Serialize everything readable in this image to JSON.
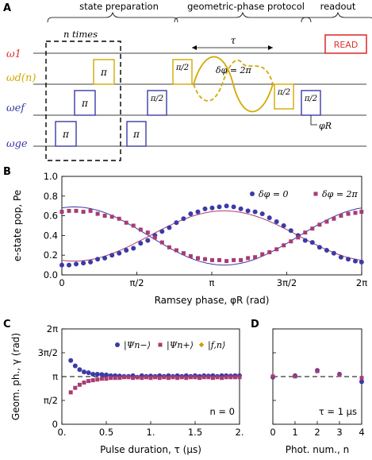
{
  "panels": {
    "a": "A",
    "b": "B",
    "c": "C",
    "d": "D"
  },
  "colors": {
    "red": "#dd3333",
    "gold": "#d4a800",
    "blue": "#3b3ba6",
    "magenta": "#a83b73",
    "axis": "#000000"
  },
  "seq": {
    "sections": [
      "state preparation",
      "geometric-phase protocol",
      "readout"
    ],
    "n_times": "n times",
    "tau": "τ",
    "delta_phi": "δφ = 2π",
    "phi_r": "φR",
    "read": "READ",
    "lines": [
      {
        "id": "w1",
        "label": "ω1",
        "color": "#dd3333"
      },
      {
        "id": "wd",
        "label": "ωd(n)",
        "color": "#d4a800"
      },
      {
        "id": "wef",
        "label": "ωef",
        "color": "#3b3ba6"
      },
      {
        "id": "wge",
        "label": "ωge",
        "color": "#3b3ba6"
      }
    ],
    "pulses": [
      "π",
      "π",
      "π",
      "π/2",
      "π/2",
      "π/2",
      "π/2",
      "π"
    ]
  },
  "chart_data": [
    {
      "type": "scatter",
      "panel": "B",
      "xlabel": "Ramsey phase, φR (rad)",
      "ylabel": "e-state pop, Pe",
      "xlim": [
        0,
        6.2832
      ],
      "ylim": [
        0,
        1.0
      ],
      "xticks": [
        "0",
        "π/2",
        "π",
        "3π/2",
        "2π"
      ],
      "yticks": [
        "0.0",
        "0.2",
        "0.4",
        "0.6",
        "0.8",
        "1.0"
      ],
      "legend_position": "top-right",
      "series": [
        {
          "name": "δφ = 0",
          "marker": "circle",
          "color": "#3b3ba6",
          "fit": {
            "offset": 0.395,
            "amplitude": 0.295,
            "phase": 3.4
          },
          "points": [
            [
              0.0,
              0.1
            ],
            [
              0.15,
              0.1
            ],
            [
              0.3,
              0.11
            ],
            [
              0.45,
              0.12
            ],
            [
              0.6,
              0.13
            ],
            [
              0.75,
              0.16
            ],
            [
              0.9,
              0.17
            ],
            [
              1.05,
              0.2
            ],
            [
              1.2,
              0.22
            ],
            [
              1.35,
              0.25
            ],
            [
              1.5,
              0.27
            ],
            [
              1.65,
              0.32
            ],
            [
              1.8,
              0.35
            ],
            [
              1.95,
              0.4
            ],
            [
              2.1,
              0.44
            ],
            [
              2.25,
              0.48
            ],
            [
              2.4,
              0.53
            ],
            [
              2.55,
              0.57
            ],
            [
              2.7,
              0.62
            ],
            [
              2.85,
              0.64
            ],
            [
              3.0,
              0.67
            ],
            [
              3.15,
              0.68
            ],
            [
              3.3,
              0.69
            ],
            [
              3.45,
              0.7
            ],
            [
              3.6,
              0.69
            ],
            [
              3.75,
              0.67
            ],
            [
              3.9,
              0.65
            ],
            [
              4.05,
              0.64
            ],
            [
              4.2,
              0.62
            ],
            [
              4.35,
              0.58
            ],
            [
              4.5,
              0.54
            ],
            [
              4.65,
              0.5
            ],
            [
              4.8,
              0.45
            ],
            [
              4.95,
              0.4
            ],
            [
              5.1,
              0.35
            ],
            [
              5.25,
              0.33
            ],
            [
              5.4,
              0.28
            ],
            [
              5.55,
              0.25
            ],
            [
              5.7,
              0.22
            ],
            [
              5.85,
              0.18
            ],
            [
              6.0,
              0.16
            ],
            [
              6.15,
              0.14
            ],
            [
              6.28,
              0.13
            ]
          ]
        },
        {
          "name": "δφ = 2π",
          "marker": "square",
          "color": "#a83b73",
          "fit": {
            "offset": 0.395,
            "amplitude": -0.255,
            "phase": 3.4
          },
          "points": [
            [
              0.0,
              0.64
            ],
            [
              0.15,
              0.65
            ],
            [
              0.3,
              0.65
            ],
            [
              0.45,
              0.64
            ],
            [
              0.6,
              0.65
            ],
            [
              0.75,
              0.62
            ],
            [
              0.9,
              0.6
            ],
            [
              1.05,
              0.59
            ],
            [
              1.2,
              0.57
            ],
            [
              1.35,
              0.53
            ],
            [
              1.5,
              0.5
            ],
            [
              1.65,
              0.46
            ],
            [
              1.8,
              0.43
            ],
            [
              1.95,
              0.38
            ],
            [
              2.1,
              0.33
            ],
            [
              2.25,
              0.28
            ],
            [
              2.4,
              0.25
            ],
            [
              2.55,
              0.22
            ],
            [
              2.7,
              0.19
            ],
            [
              2.85,
              0.17
            ],
            [
              3.0,
              0.16
            ],
            [
              3.15,
              0.15
            ],
            [
              3.3,
              0.15
            ],
            [
              3.45,
              0.14
            ],
            [
              3.6,
              0.15
            ],
            [
              3.75,
              0.15
            ],
            [
              3.9,
              0.17
            ],
            [
              4.05,
              0.18
            ],
            [
              4.2,
              0.21
            ],
            [
              4.35,
              0.23
            ],
            [
              4.5,
              0.26
            ],
            [
              4.65,
              0.3
            ],
            [
              4.8,
              0.34
            ],
            [
              4.95,
              0.38
            ],
            [
              5.1,
              0.43
            ],
            [
              5.25,
              0.47
            ],
            [
              5.4,
              0.51
            ],
            [
              5.55,
              0.54
            ],
            [
              5.7,
              0.57
            ],
            [
              5.85,
              0.6
            ],
            [
              6.0,
              0.62
            ],
            [
              6.15,
              0.63
            ],
            [
              6.28,
              0.64
            ]
          ]
        }
      ]
    },
    {
      "type": "scatter",
      "panel": "C",
      "xlabel": "Pulse duration, τ (μs)",
      "ylabel": "Geom. ph., γ (rad)",
      "xlim": [
        0,
        2
      ],
      "ylim": [
        0,
        6.2832
      ],
      "xticks": [
        "0.",
        "0.5",
        "1.",
        "1.5",
        "2."
      ],
      "yticks": [
        "0",
        "π/2",
        "π",
        "3π/2",
        "2π"
      ],
      "reference_line": 3.1416,
      "annotation": "n = 0",
      "legend_position": "top",
      "series": [
        {
          "name": "|Ψn−⟩",
          "marker": "circle",
          "color": "#3b3ba6",
          "points": [
            [
              0.1,
              4.2
            ],
            [
              0.15,
              3.85
            ],
            [
              0.2,
              3.6
            ],
            [
              0.25,
              3.45
            ],
            [
              0.3,
              3.4
            ],
            [
              0.35,
              3.3
            ],
            [
              0.4,
              3.3
            ],
            [
              0.45,
              3.28
            ],
            [
              0.5,
              3.25
            ],
            [
              0.55,
              3.2
            ],
            [
              0.6,
              3.2
            ],
            [
              0.65,
              3.18
            ],
            [
              0.7,
              3.15
            ],
            [
              0.75,
              3.15
            ],
            [
              0.8,
              3.2
            ],
            [
              0.85,
              3.1
            ],
            [
              0.9,
              3.2
            ],
            [
              0.95,
              3.15
            ],
            [
              1.0,
              3.18
            ],
            [
              1.05,
              3.15
            ],
            [
              1.1,
              3.2
            ],
            [
              1.15,
              3.15
            ],
            [
              1.2,
              3.2
            ],
            [
              1.25,
              3.15
            ],
            [
              1.3,
              3.2
            ],
            [
              1.35,
              3.15
            ],
            [
              1.4,
              3.2
            ],
            [
              1.45,
              3.15
            ],
            [
              1.5,
              3.2
            ],
            [
              1.55,
              3.15
            ],
            [
              1.6,
              3.2
            ],
            [
              1.65,
              3.18
            ],
            [
              1.7,
              3.2
            ],
            [
              1.75,
              3.15
            ],
            [
              1.8,
              3.2
            ],
            [
              1.85,
              3.2
            ],
            [
              1.9,
              3.18
            ],
            [
              1.95,
              3.2
            ],
            [
              2.0,
              3.2
            ]
          ]
        },
        {
          "name": "|Ψn+⟩",
          "marker": "square",
          "color": "#a83b73",
          "points": [
            [
              0.1,
              2.1
            ],
            [
              0.15,
              2.4
            ],
            [
              0.2,
              2.6
            ],
            [
              0.25,
              2.75
            ],
            [
              0.3,
              2.85
            ],
            [
              0.35,
              2.9
            ],
            [
              0.4,
              2.95
            ],
            [
              0.45,
              3.0
            ],
            [
              0.5,
              3.0
            ],
            [
              0.55,
              3.05
            ],
            [
              0.6,
              3.05
            ],
            [
              0.65,
              3.05
            ],
            [
              0.7,
              3.1
            ],
            [
              0.75,
              3.1
            ],
            [
              0.8,
              3.05
            ],
            [
              0.85,
              3.1
            ],
            [
              0.9,
              3.05
            ],
            [
              0.95,
              3.1
            ],
            [
              1.0,
              3.05
            ],
            [
              1.05,
              3.1
            ],
            [
              1.1,
              3.05
            ],
            [
              1.15,
              3.1
            ],
            [
              1.2,
              3.05
            ],
            [
              1.25,
              3.1
            ],
            [
              1.3,
              3.05
            ],
            [
              1.35,
              3.1
            ],
            [
              1.4,
              3.05
            ],
            [
              1.45,
              3.1
            ],
            [
              1.5,
              3.1
            ],
            [
              1.55,
              3.05
            ],
            [
              1.6,
              3.1
            ],
            [
              1.65,
              3.1
            ],
            [
              1.7,
              3.05
            ],
            [
              1.75,
              3.1
            ],
            [
              1.8,
              3.05
            ],
            [
              1.85,
              3.1
            ],
            [
              1.9,
              3.1
            ],
            [
              1.95,
              3.1
            ],
            [
              2.0,
              3.1
            ]
          ]
        },
        {
          "name": "|f,n⟩",
          "marker": "diamond",
          "color": "#c9a000",
          "points": [
            [
              0.1,
              3.1
            ],
            [
              0.15,
              3.15
            ],
            [
              0.2,
              3.12
            ],
            [
              0.25,
              3.15
            ],
            [
              0.3,
              3.1
            ],
            [
              0.35,
              3.12
            ],
            [
              0.4,
              3.15
            ],
            [
              0.45,
              3.1
            ],
            [
              0.5,
              3.12
            ],
            [
              0.55,
              3.15
            ],
            [
              0.6,
              3.1
            ],
            [
              0.65,
              3.12
            ],
            [
              0.7,
              3.15
            ],
            [
              0.75,
              3.12
            ],
            [
              0.8,
              3.1
            ],
            [
              0.85,
              3.15
            ],
            [
              0.9,
              3.12
            ],
            [
              0.95,
              3.1
            ],
            [
              1.0,
              3.15
            ],
            [
              1.05,
              3.12
            ],
            [
              1.1,
              3.1
            ],
            [
              1.15,
              3.15
            ],
            [
              1.2,
              3.12
            ],
            [
              1.25,
              3.1
            ],
            [
              1.3,
              3.15
            ],
            [
              1.35,
              3.12
            ],
            [
              1.4,
              3.1
            ],
            [
              1.45,
              3.15
            ],
            [
              1.5,
              3.12
            ],
            [
              1.55,
              3.1
            ],
            [
              1.6,
              3.15
            ],
            [
              1.65,
              3.12
            ],
            [
              1.7,
              3.1
            ],
            [
              1.75,
              3.15
            ],
            [
              1.8,
              3.12
            ],
            [
              1.85,
              3.1
            ],
            [
              1.9,
              3.15
            ],
            [
              1.95,
              3.12
            ],
            [
              2.0,
              3.1
            ]
          ]
        }
      ]
    },
    {
      "type": "scatter",
      "panel": "D",
      "xlabel": "Phot. num., n",
      "xlim": [
        0,
        4
      ],
      "ylim": [
        0,
        6.2832
      ],
      "xticks": [
        "0",
        "1",
        "2",
        "3",
        "4"
      ],
      "reference_line": 3.1416,
      "annotation": "τ = 1 μs",
      "series": [
        {
          "name": "|Ψn−⟩",
          "marker": "circle",
          "color": "#3b3ba6",
          "points": [
            [
              0,
              3.1
            ],
            [
              1,
              3.2
            ],
            [
              2,
              3.55
            ],
            [
              3,
              3.3
            ],
            [
              4,
              2.8
            ]
          ]
        },
        {
          "name": "|Ψn+⟩",
          "marker": "square",
          "color": "#a83b73",
          "points": [
            [
              0,
              3.15
            ],
            [
              1,
              3.15
            ],
            [
              2,
              3.5
            ],
            [
              3,
              3.25
            ],
            [
              4,
              3.05
            ]
          ]
        },
        {
          "name": "|f,n⟩",
          "marker": "diamond",
          "color": "#c9a000",
          "points": [
            [
              0,
              3.12
            ],
            [
              1,
              3.12
            ],
            [
              2,
              3.45
            ],
            [
              3,
              3.2
            ],
            [
              4,
              3.1
            ]
          ]
        }
      ]
    }
  ]
}
